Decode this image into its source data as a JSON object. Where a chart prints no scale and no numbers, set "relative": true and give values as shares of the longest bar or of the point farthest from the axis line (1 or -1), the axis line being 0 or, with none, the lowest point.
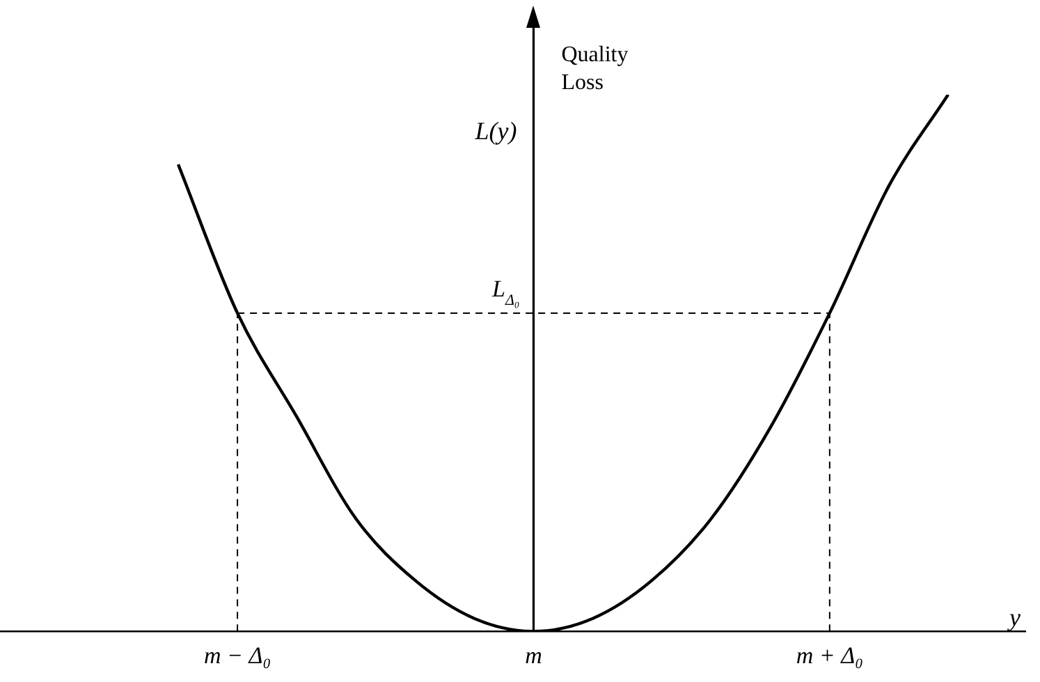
{
  "chart_data": {
    "type": "line",
    "relative": true,
    "color": "#000000",
    "marker": "none",
    "line_style": "solid",
    "categories": [
      null,
      "m − Δ₀",
      null,
      null,
      null,
      null,
      "m",
      null,
      null,
      null,
      null,
      "m + Δ₀",
      null,
      null
    ],
    "values": [
      0.87,
      0.593,
      0.4,
      0.21,
      0.095,
      0.024,
      0,
      0.024,
      0.095,
      0.21,
      0.38,
      0.593,
      0.83,
      1
    ],
    "xlabel": "y",
    "ylabel": "L(y)",
    "annotations": [
      "Quality Loss"
    ],
    "ref_lines": [
      {
        "axis": "y",
        "value": 0.593,
        "label": "L$_{Δ₀}$",
        "line_style": "dashed"
      },
      {
        "axis": "x",
        "value": "m − Δ₀",
        "line_style": "dashed"
      },
      {
        "axis": "x",
        "value": "m + Δ₀",
        "line_style": "dashed"
      }
    ]
  }
}
